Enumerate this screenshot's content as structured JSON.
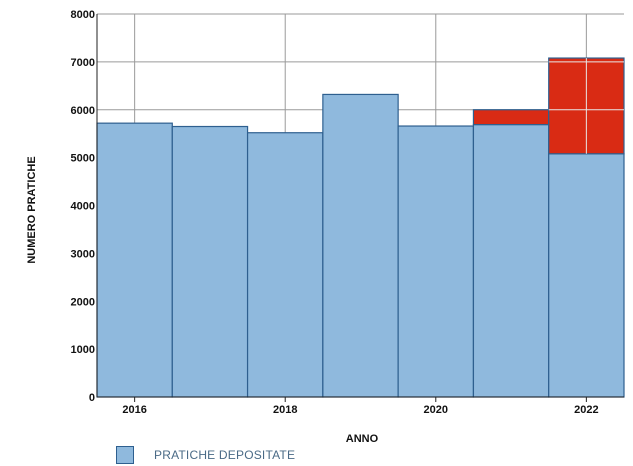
{
  "chart_data": {
    "type": "bar",
    "title": "",
    "xlabel": "ANNO",
    "ylabel": "NUMERO PRATICHE",
    "ylim": [
      0,
      8000
    ],
    "yticks": [
      0,
      1000,
      2000,
      3000,
      4000,
      5000,
      6000,
      7000,
      8000
    ],
    "categories": [
      "2016",
      "2017",
      "2018",
      "2019",
      "2020",
      "2021",
      "2022"
    ],
    "x_tick_labels": [
      "2016",
      "2018",
      "2020",
      "2022"
    ],
    "grid": true,
    "stacked": true,
    "legend_position": "bottom-left",
    "series": [
      {
        "name": "PRATICHE DEPOSITATE",
        "color": "#8fb9dd",
        "values": [
          5720,
          5650,
          5520,
          6320,
          5660,
          5690,
          5080
        ]
      },
      {
        "color": "#d92b14",
        "values": [
          0,
          0,
          0,
          0,
          0,
          310,
          2000
        ]
      }
    ]
  },
  "colors": {
    "bar_edge": "#2e5f8f",
    "grid": "#9a9a9a",
    "axis": "#222222"
  }
}
